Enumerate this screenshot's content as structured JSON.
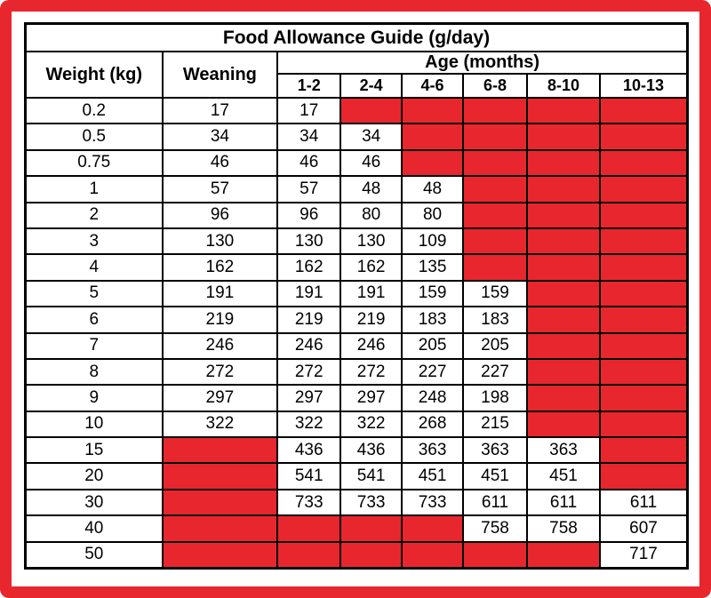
{
  "colors": {
    "red": "#e8262e",
    "grid_black": "#000000",
    "background": "#ffffff"
  },
  "chart_data": {
    "type": "table",
    "title": "Food Allowance Guide (g/day)",
    "header": {
      "weight": "Weight (kg)",
      "weaning": "Weaning",
      "age_group": "Age (months)",
      "age_columns": [
        "1-2",
        "2-4",
        "4-6",
        "6-8",
        "8-10",
        "10-13"
      ]
    },
    "rows": [
      {
        "weight": "0.2",
        "weaning": "17",
        "ages": [
          "17",
          null,
          null,
          null,
          null,
          null
        ]
      },
      {
        "weight": "0.5",
        "weaning": "34",
        "ages": [
          "34",
          "34",
          null,
          null,
          null,
          null
        ]
      },
      {
        "weight": "0.75",
        "weaning": "46",
        "ages": [
          "46",
          "46",
          null,
          null,
          null,
          null
        ]
      },
      {
        "weight": "1",
        "weaning": "57",
        "ages": [
          "57",
          "48",
          "48",
          null,
          null,
          null
        ]
      },
      {
        "weight": "2",
        "weaning": "96",
        "ages": [
          "96",
          "80",
          "80",
          null,
          null,
          null
        ]
      },
      {
        "weight": "3",
        "weaning": "130",
        "ages": [
          "130",
          "130",
          "109",
          null,
          null,
          null
        ]
      },
      {
        "weight": "4",
        "weaning": "162",
        "ages": [
          "162",
          "162",
          "135",
          null,
          null,
          null
        ]
      },
      {
        "weight": "5",
        "weaning": "191",
        "ages": [
          "191",
          "191",
          "159",
          "159",
          null,
          null
        ]
      },
      {
        "weight": "6",
        "weaning": "219",
        "ages": [
          "219",
          "219",
          "183",
          "183",
          null,
          null
        ]
      },
      {
        "weight": "7",
        "weaning": "246",
        "ages": [
          "246",
          "246",
          "205",
          "205",
          null,
          null
        ]
      },
      {
        "weight": "8",
        "weaning": "272",
        "ages": [
          "272",
          "272",
          "227",
          "227",
          null,
          null
        ]
      },
      {
        "weight": "9",
        "weaning": "297",
        "ages": [
          "297",
          "297",
          "248",
          "198",
          null,
          null
        ]
      },
      {
        "weight": "10",
        "weaning": "322",
        "ages": [
          "322",
          "322",
          "268",
          "215",
          null,
          null
        ]
      },
      {
        "weight": "15",
        "weaning": null,
        "ages": [
          "436",
          "436",
          "363",
          "363",
          "363",
          null
        ]
      },
      {
        "weight": "20",
        "weaning": null,
        "ages": [
          "541",
          "541",
          "451",
          "451",
          "451",
          null
        ]
      },
      {
        "weight": "30",
        "weaning": null,
        "ages": [
          "733",
          "733",
          "733",
          "611",
          "611",
          "611"
        ]
      },
      {
        "weight": "40",
        "weaning": null,
        "ages": [
          null,
          null,
          null,
          "758",
          "758",
          "607"
        ]
      },
      {
        "weight": "50",
        "weaning": null,
        "ages": [
          null,
          null,
          null,
          null,
          null,
          "717"
        ]
      }
    ]
  }
}
